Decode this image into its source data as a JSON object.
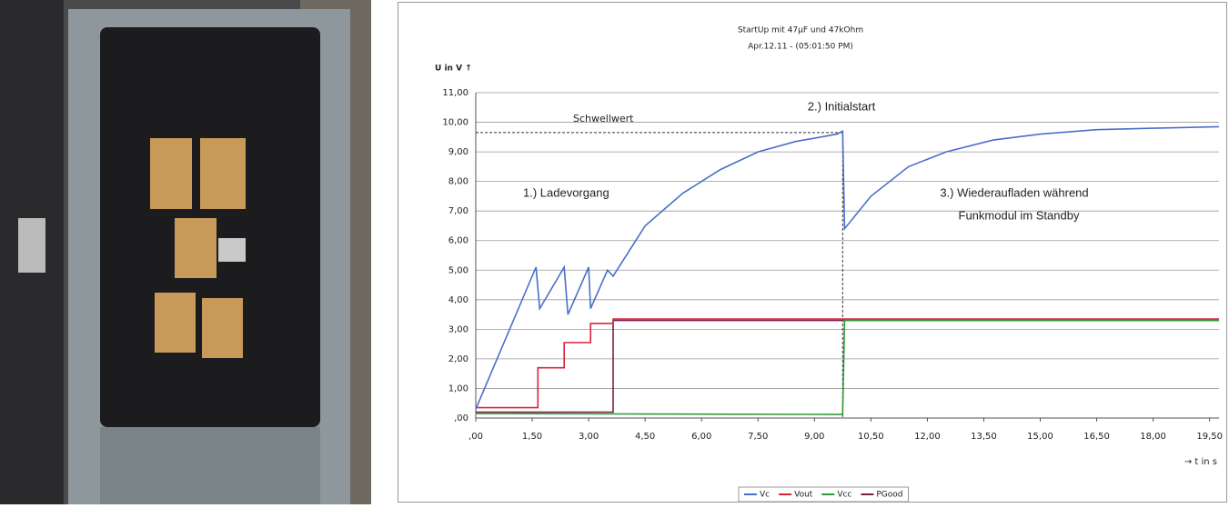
{
  "chart_data": {
    "type": "line",
    "title": "StartUp mit 47µF und 47kOhm",
    "subtitle": "Apr.12.11 - (05:01:50 PM)",
    "y_label": "U in V ↑",
    "x_label": "→ t in s",
    "xlim": [
      0,
      19.75
    ],
    "ylim": [
      0,
      11
    ],
    "xticks": [
      {
        "value": 0,
        "label": ",00"
      },
      {
        "value": 1.5,
        "label": "1,50"
      },
      {
        "value": 3,
        "label": "3,00"
      },
      {
        "value": 4.5,
        "label": "4,50"
      },
      {
        "value": 6,
        "label": "6,00"
      },
      {
        "value": 7.5,
        "label": "7,50"
      },
      {
        "value": 9,
        "label": "9,00"
      },
      {
        "value": 10.5,
        "label": "10,50"
      },
      {
        "value": 12,
        "label": "12,00"
      },
      {
        "value": 13.5,
        "label": "13,50"
      },
      {
        "value": 15,
        "label": "15,00"
      },
      {
        "value": 16.5,
        "label": "16,50"
      },
      {
        "value": 18,
        "label": "18,00"
      },
      {
        "value": 19.5,
        "label": "19,50"
      }
    ],
    "yticks": [
      {
        "value": 0,
        "label": ",00"
      },
      {
        "value": 1,
        "label": "1,00"
      },
      {
        "value": 2,
        "label": "2,00"
      },
      {
        "value": 3,
        "label": "3,00"
      },
      {
        "value": 4,
        "label": "4,00"
      },
      {
        "value": 5,
        "label": "5,00"
      },
      {
        "value": 6,
        "label": "6,00"
      },
      {
        "value": 7,
        "label": "7,00"
      },
      {
        "value": 8,
        "label": "8,00"
      },
      {
        "value": 9,
        "label": "9,00"
      },
      {
        "value": 10,
        "label": "10,00"
      },
      {
        "value": 11,
        "label": "11,00"
      }
    ],
    "grid": true,
    "threshold": {
      "label": "Schwellwert",
      "value": 9.65
    },
    "event_x": 9.75,
    "annotations": [
      "2.) Initialstart",
      "1.) Ladevorgang",
      "3.) Wiederaufladen während",
      "Funkmodul im Standby"
    ],
    "series": [
      {
        "name": "Vc",
        "color": "#4a6fc9",
        "x": [
          0,
          1.6,
          1.7,
          2.35,
          2.45,
          3.0,
          3.05,
          3.5,
          3.65,
          4.5,
          5.5,
          6.5,
          7.5,
          8.5,
          9.6,
          9.75,
          9.8,
          10.5,
          11.5,
          12.5,
          13.75,
          15,
          16.5,
          18,
          19.75
        ],
        "values": [
          0.3,
          5.1,
          3.7,
          5.1,
          3.5,
          5.1,
          3.7,
          5.0,
          4.8,
          6.5,
          7.6,
          8.4,
          9.0,
          9.35,
          9.6,
          9.7,
          6.4,
          7.5,
          8.5,
          9.0,
          9.4,
          9.6,
          9.75,
          9.8,
          9.85
        ]
      },
      {
        "name": "Vout",
        "color": "#d9233a",
        "x": [
          0,
          1.65,
          1.65,
          2.35,
          2.35,
          3.05,
          3.05,
          3.65,
          3.65,
          19.75
        ],
        "values": [
          0.35,
          0.35,
          1.7,
          1.7,
          2.55,
          2.55,
          3.2,
          3.2,
          3.35,
          3.35
        ]
      },
      {
        "name": "Vcc",
        "color": "#2e9a3a",
        "x": [
          0,
          9.75,
          9.8,
          19.75
        ],
        "values": [
          0.15,
          0.12,
          3.3,
          3.3
        ]
      },
      {
        "name": "PGood",
        "color": "#7a1f4a",
        "x": [
          0,
          3.65,
          3.65,
          19.75
        ],
        "values": [
          0.2,
          0.2,
          3.3,
          3.3
        ]
      }
    ]
  }
}
